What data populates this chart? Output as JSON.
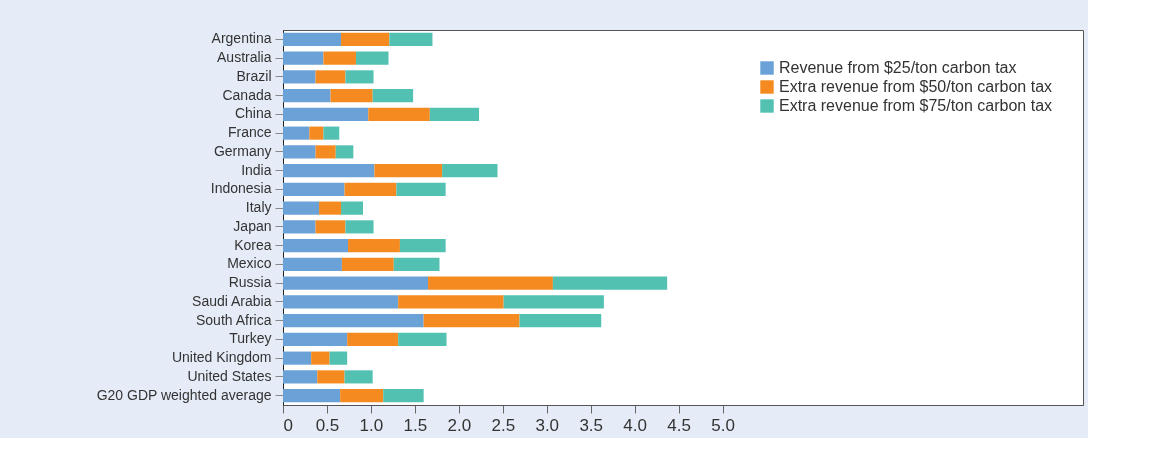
{
  "chart_data": {
    "type": "bar",
    "orientation": "horizontal",
    "stacked": true,
    "legend": "top right",
    "grid": false,
    "categories": [
      "Argentina",
      "Australia",
      "Brazil",
      "Canada",
      "China",
      "France",
      "Germany",
      "India",
      "Indonesia",
      "Italy",
      "Japan",
      "Korea",
      "Mexico",
      "Russia",
      "Saudi Arabia",
      "South Africa",
      "Turkey",
      "United Kingdom",
      "United States",
      "G20 GDP weighted average"
    ],
    "series": [
      {
        "name": "Revenue from $25/ton carbon tax",
        "color": "#6aa2d8",
        "values": [
          0.66,
          0.46,
          0.37,
          0.54,
          0.97,
          0.3,
          0.37,
          1.04,
          0.7,
          0.41,
          0.37,
          0.74,
          0.67,
          1.65,
          1.31,
          1.6,
          0.73,
          0.32,
          0.39,
          0.65
        ]
      },
      {
        "name": "Extra revenue from $50/ton carbon tax",
        "color": "#f58b20",
        "values": [
          0.55,
          0.37,
          0.34,
          0.48,
          0.7,
          0.16,
          0.23,
          0.77,
          0.59,
          0.25,
          0.34,
          0.59,
          0.59,
          1.42,
          1.2,
          1.09,
          0.58,
          0.21,
          0.31,
          0.49
        ]
      },
      {
        "name": "Extra revenue from $75/ton carbon tax",
        "color": "#52c1b2",
        "values": [
          0.49,
          0.37,
          0.32,
          0.46,
          0.56,
          0.18,
          0.2,
          0.63,
          0.56,
          0.25,
          0.32,
          0.52,
          0.52,
          1.3,
          1.14,
          0.93,
          0.55,
          0.2,
          0.32,
          0.46
        ]
      }
    ],
    "xlim": [
      0,
      9.1
    ],
    "xticks": [
      0,
      {
        "value": 0.5,
        "label": "0.5"
      },
      {
        "value": 1,
        "label": "1.0"
      },
      {
        "value": 1.5,
        "label": "1.5"
      },
      {
        "value": 2,
        "label": "2.0"
      },
      {
        "value": 2.5,
        "label": "2.5"
      },
      {
        "value": 3,
        "label": "3.0"
      },
      {
        "value": 3.5,
        "label": "3.5"
      },
      {
        "value": 4,
        "label": "4.0"
      },
      {
        "value": 4.5,
        "label": "4.5"
      },
      {
        "value": 5,
        "label": "5.0"
      }
    ]
  }
}
